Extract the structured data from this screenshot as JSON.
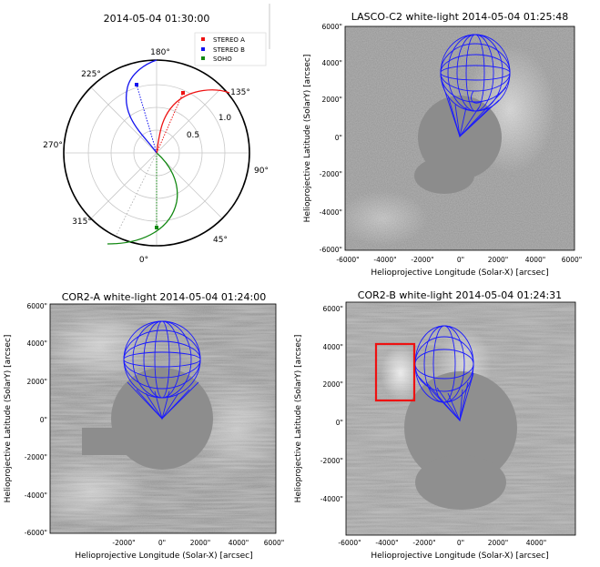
{
  "polar_panel": {
    "title": "2014-05-04 01:30:00",
    "angle_labels": [
      "180°",
      "135°",
      "90°",
      "45°",
      "0°",
      "315°",
      "270°",
      "225°"
    ],
    "radius_labels": [
      "0.5",
      "1.0"
    ],
    "legend": [
      {
        "label": "STEREO A",
        "color": "#ee1111"
      },
      {
        "label": "STEREO B",
        "color": "#1111ee"
      },
      {
        "label": "SOHO",
        "color": "#118811"
      }
    ]
  },
  "image_panels": [
    {
      "title": "LASCO-C2 white-light 2014-05-04 01:25:48",
      "xlabel": "Helioprojective Longitude (Solar-X) [arcsec]",
      "ylabel": "Helioprojective Latitude (SolarY) [arcsec]",
      "xticks": [
        "-6000\"",
        "-4000\"",
        "-2000\"",
        "0\"",
        "2000\"",
        "4000\"",
        "6000\""
      ],
      "yticks": [
        "6000\"",
        "4000\"",
        "2000\"",
        "0\"",
        "-2000\"",
        "-4000\"",
        "-6000\""
      ]
    },
    {
      "title": "COR2-A white-light 2014-05-04 01:24:00",
      "xlabel": "Helioprojective Longitude (Solar-X) [arcsec]",
      "ylabel": "Helioprojective Latitude (SolarY) [arcsec]",
      "xticks": [
        "-2000\"",
        "0\"",
        "2000\"",
        "4000\"",
        "6000\""
      ],
      "yticks": [
        "6000\"",
        "4000\"",
        "2000\"",
        "0\"",
        "-2000\"",
        "-4000\"",
        "-6000\""
      ]
    },
    {
      "title": "COR2-B white-light 2014-05-04 01:24:31",
      "xlabel": "Helioprojective Longitude (Solar-X) [arcsec]",
      "ylabel": "Helioprojective Latitude (SolarY) [arcsec]",
      "xticks": [
        "-6000\"",
        "-4000\"",
        "-2000\"",
        "0\"",
        "2000\"",
        "4000\""
      ],
      "yticks": [
        "6000\"",
        "4000\"",
        "2000\"",
        "0\"",
        "-2000\"",
        "-4000\""
      ]
    }
  ],
  "colors": {
    "mesh": "#1a1aff",
    "highlight_box": "#ee1111",
    "occulter": "#8a8a8a",
    "background": "#a9a9a9"
  }
}
